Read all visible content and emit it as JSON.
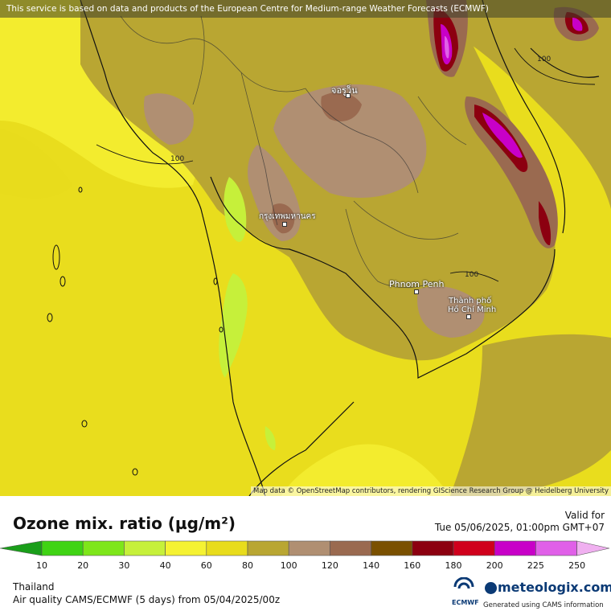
{
  "map": {
    "attribution_top": "This service is based on data and products of the European Centre for Medium-range Weather Forecasts (ECMWF)",
    "attribution_bottom": "Map data © OpenStreetMap contributors, rendering GIScience Research Group @ Heidelberg University",
    "cities": [
      {
        "name": "จอรูว็น"
      },
      {
        "name": "กรุงเทพมหานคร"
      },
      {
        "name": "Phnom Penh"
      },
      {
        "name": "Thành phố"
      },
      {
        "name": "Hồ Chí Minh"
      }
    ],
    "contour_labels": [
      "100",
      "100",
      "100"
    ]
  },
  "legend": {
    "title": "Ozone mix. ratio (µg/m²)",
    "valid_label": "Valid for",
    "valid_time": "Tue 05/06/2025, 01:00pm GMT+07",
    "ticks": [
      "10",
      "20",
      "30",
      "40",
      "60",
      "80",
      "100",
      "120",
      "140",
      "160",
      "180",
      "200",
      "225",
      "250"
    ],
    "colors": [
      "#1a9e1a",
      "#3fd314",
      "#7ee61a",
      "#c6f03a",
      "#f5f232",
      "#e8dc1c",
      "#b9a632",
      "#b08f72",
      "#9a6a50",
      "#7a5000",
      "#8c0010",
      "#d0001c",
      "#c800c8",
      "#e060e8",
      "#f0b0f0"
    ]
  },
  "footer": {
    "region": "Thailand",
    "model_info": "Air quality CAMS/ECMWF (5 days) from 05/04/2025/00z",
    "ecmwf_label": "ECMWF",
    "brand": "meteologix.com",
    "brand_sub": "Generated using CAMS information"
  }
}
